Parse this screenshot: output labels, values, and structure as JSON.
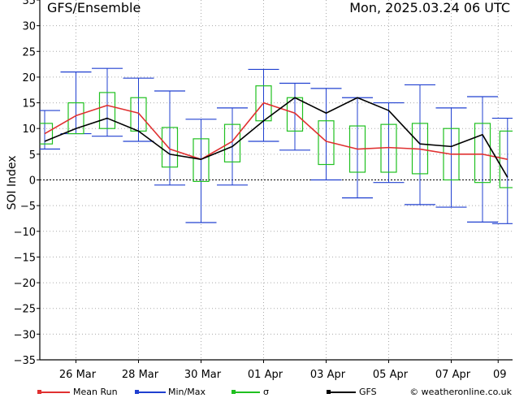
{
  "header": {
    "title": "GFS/Ensemble",
    "datetime": "Mon, 2025.03.24   06 UTC"
  },
  "chart_data": {
    "type": "line",
    "title": "GFS/Ensemble",
    "ylabel": "SOI Index",
    "xlabel": "",
    "ylim": [
      -35,
      35
    ],
    "yticks": [
      35,
      30,
      25,
      20,
      15,
      10,
      5,
      0,
      -5,
      -10,
      -15,
      -20,
      -25,
      -30,
      -35
    ],
    "ytick_labels": [
      "35",
      "30",
      "25",
      "20",
      "15",
      "10",
      "5",
      "0",
      "−5",
      "−10",
      "−15",
      "−20",
      "−25",
      "−30",
      "−35"
    ],
    "xlim": [
      0,
      14.5
    ],
    "x_tick_positions": [
      1,
      3,
      5,
      7,
      9,
      11,
      13,
      14.5
    ],
    "x_tick_labels": [
      "26 Mar",
      "28 Mar",
      "30 Mar",
      "01 Apr",
      "03 Apr",
      "05 Apr",
      "07 Apr",
      "09"
    ],
    "x": [
      0,
      1,
      2,
      3,
      4,
      5,
      6,
      7,
      8,
      9,
      10,
      11,
      12,
      13,
      14,
      14.8
    ],
    "grid": true,
    "series": [
      {
        "name": "Mean Run",
        "color": "#e03030",
        "values": [
          9,
          12.5,
          14.5,
          13,
          6,
          4,
          7.5,
          15,
          13,
          7.5,
          6,
          6.3,
          6,
          5,
          5,
          4
        ]
      },
      {
        "name": "GFS",
        "color": "#000000",
        "values": [
          7.5,
          10,
          12,
          9.5,
          5,
          4,
          6.5,
          11.5,
          16,
          13,
          16,
          13.5,
          7,
          6.5,
          8.8,
          0.5
        ]
      },
      {
        "name": "Min/Max",
        "color": "#2040d0",
        "min": [
          6,
          9,
          8.5,
          7.5,
          -1,
          -8.3,
          -1,
          7.5,
          5.8,
          0,
          -3.5,
          -0.5,
          -4.8,
          -5.3,
          -8.2,
          -8.5
        ],
        "max": [
          13.5,
          21,
          21.7,
          19.8,
          17.3,
          11.8,
          14,
          21.5,
          18.8,
          17.8,
          16,
          15,
          18.5,
          14,
          16.2,
          12
        ]
      },
      {
        "name": "σ",
        "color": "#20c020",
        "lower": [
          7,
          9,
          10,
          9.5,
          2.5,
          -0.3,
          3.5,
          11.5,
          9.5,
          3,
          1.5,
          1.5,
          1.2,
          0,
          -0.5,
          -1.5
        ],
        "upper": [
          11,
          15,
          17,
          16,
          10.2,
          8,
          10.8,
          18.3,
          16,
          11.5,
          10.5,
          10.8,
          11,
          10,
          11,
          9.5
        ]
      }
    ]
  },
  "legend": {
    "mean_run": "Mean Run",
    "min_max": "Min/Max",
    "sigma": "σ",
    "gfs": "GFS"
  },
  "credit": "© weatheronline.co.uk"
}
